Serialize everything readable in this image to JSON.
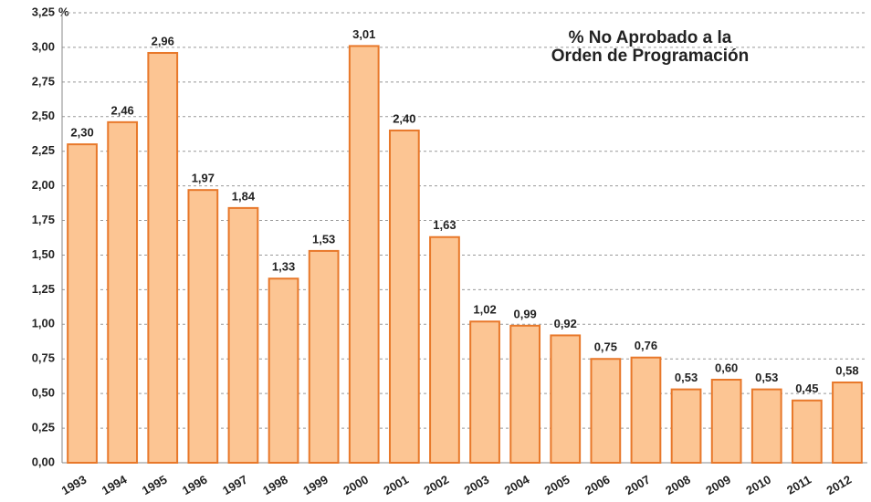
{
  "chart_data": {
    "type": "bar",
    "title": [
      "% No Aprobado a la",
      "Orden de Programación"
    ],
    "y_unit": "%",
    "categories": [
      "1993",
      "1994",
      "1995",
      "1996",
      "1997",
      "1998",
      "1999",
      "2000",
      "2001",
      "2002",
      "2003",
      "2004",
      "2005",
      "2006",
      "2007",
      "2008",
      "2009",
      "2010",
      "2011",
      "2012"
    ],
    "values": [
      2.3,
      2.46,
      2.96,
      1.97,
      1.84,
      1.33,
      1.53,
      3.01,
      2.4,
      1.63,
      1.02,
      0.99,
      0.92,
      0.75,
      0.76,
      0.53,
      0.6,
      0.53,
      0.45,
      0.58
    ],
    "value_labels": [
      "2,30",
      "2,46",
      "2,96",
      "1,97",
      "1,84",
      "1,33",
      "1,53",
      "3,01",
      "2,40",
      "1,63",
      "1,02",
      "0,99",
      "0,92",
      "0,75",
      "0,76",
      "0,53",
      "0,60",
      "0,53",
      "0,45",
      "0,58"
    ],
    "color": "#fcc593",
    "edge_color": "#e8782a",
    "ylim": [
      0,
      3.25
    ],
    "yticks": [
      {
        "value": 0,
        "label": "0,00"
      },
      {
        "value": 0.25,
        "label": "0,25"
      },
      {
        "value": 0.5,
        "label": "0,50"
      },
      {
        "value": 0.75,
        "label": "0,75"
      },
      {
        "value": 1,
        "label": "1,00"
      },
      {
        "value": 1.25,
        "label": "1,25"
      },
      {
        "value": 1.5,
        "label": "1,50"
      },
      {
        "value": 1.75,
        "label": "1,75"
      },
      {
        "value": 2,
        "label": "2,00"
      },
      {
        "value": 2.25,
        "label": "2,25"
      },
      {
        "value": 2.5,
        "label": "2,50"
      },
      {
        "value": 2.75,
        "label": "2,75"
      },
      {
        "value": 3,
        "label": "3,00"
      },
      {
        "value": 3.25,
        "label": "3,25"
      }
    ],
    "grid": true
  }
}
